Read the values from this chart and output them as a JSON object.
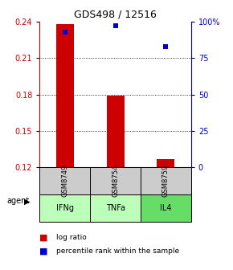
{
  "title": "GDS498 / 12516",
  "samples": [
    "GSM8749",
    "GSM8754",
    "GSM8759"
  ],
  "agents": [
    "IFNg",
    "TNFa",
    "IL4"
  ],
  "log_ratios": [
    0.238,
    0.179,
    0.127
  ],
  "percentile_ranks": [
    93,
    97,
    83
  ],
  "ylim_left": [
    0.12,
    0.24
  ],
  "ylim_right": [
    0,
    100
  ],
  "yticks_left": [
    0.12,
    0.15,
    0.18,
    0.21,
    0.24
  ],
  "yticks_right": [
    0,
    25,
    50,
    75,
    100
  ],
  "bar_color": "#cc0000",
  "dot_color": "#0000cc",
  "sample_bg_color": "#cccccc",
  "agent_color_light": "#bbffbb",
  "agent_color_dark": "#66dd66",
  "legend_bar_label": "log ratio",
  "legend_dot_label": "percentile rank within the sample",
  "bar_width": 0.35,
  "baseline": 0.12,
  "title_fontsize": 9,
  "tick_fontsize": 7,
  "label_fontsize": 7,
  "legend_fontsize": 6.5
}
